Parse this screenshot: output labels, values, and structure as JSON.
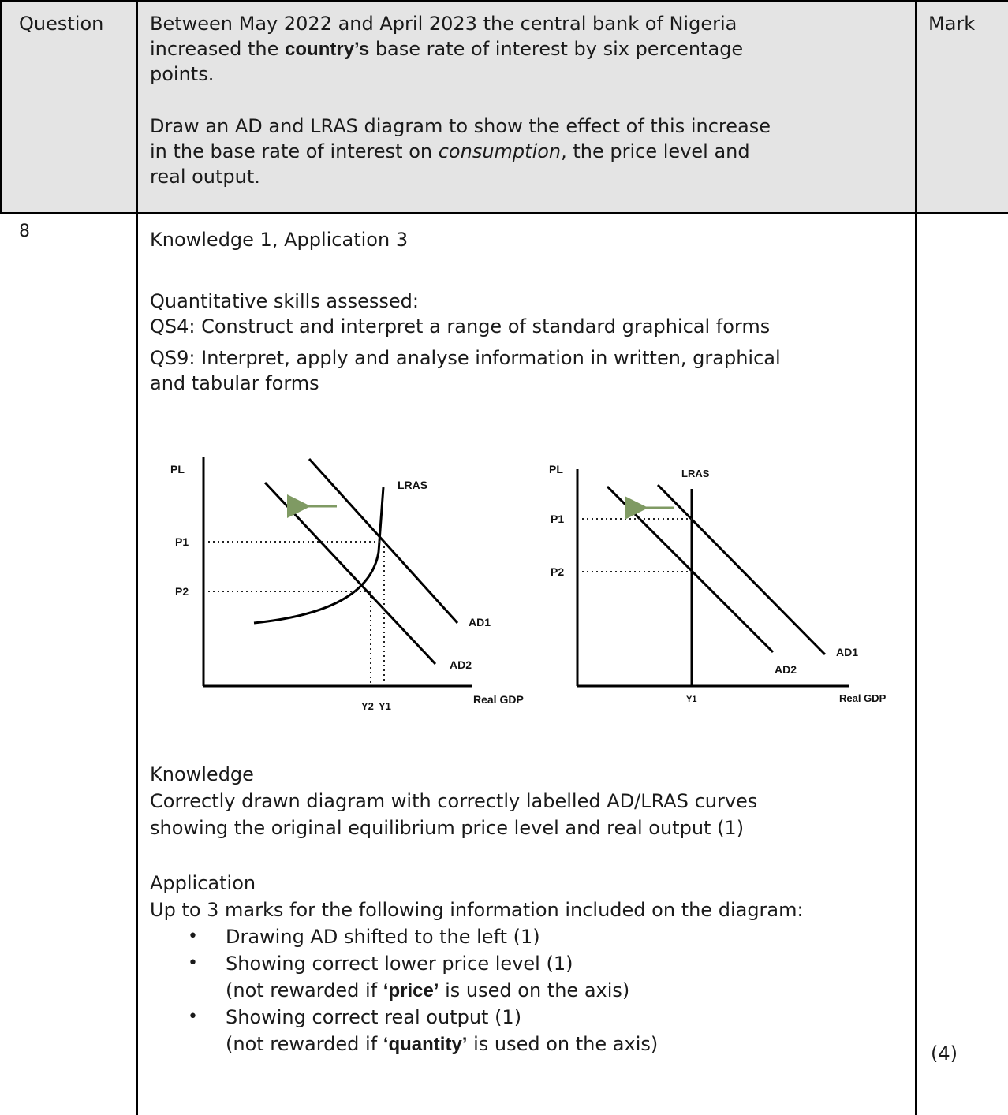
{
  "header": {
    "question_label": "Question",
    "mark_label": "Mark",
    "prompt_lines": [
      {
        "before": "Between May 2022 and April 2023 the central bank of Nigeria",
        "bold": "",
        "after": ""
      },
      {
        "before": "increased the ",
        "bold": "country’s",
        "after": " base rate of interest by six percentage"
      },
      {
        "before": "points.",
        "bold": "",
        "after": ""
      }
    ],
    "task_lines": [
      {
        "before": "Draw an AD and LRAS diagram to show the effect of this increase",
        "italic": "",
        "after": ""
      },
      {
        "before": "in the base rate of interest on ",
        "italic": "consumption",
        "after": ", the price level and"
      },
      {
        "before": "real output.",
        "italic": "",
        "after": ""
      }
    ]
  },
  "row": {
    "question_number": "8",
    "marks_breakdown": "Knowledge 1, Application 3",
    "qs_heading": "Quantitative skills assessed:",
    "qs_items": [
      "QS4: Construct and interpret a range of standard graphical forms",
      "QS9: Interpret, apply and analyse information in written, graphical",
      "and tabular forms"
    ],
    "knowledge_heading": "Knowledge",
    "knowledge_lines": [
      "Correctly drawn diagram with correctly labelled AD/LRAS curves",
      "showing the original equilibrium price level and real output (1)"
    ],
    "application_heading": "Application",
    "application_intro": "Up to 3 marks for the following information included on the diagram:",
    "bullet_1": "Drawing AD shifted to the left (1)",
    "bullet_2": "Showing correct lower price level (1)",
    "bullet_2_note": {
      "before": "(not rewarded if ",
      "bold": "‘price’",
      "after": " is used on the axis)"
    },
    "bullet_3": "Showing correct real output (1)",
    "bullet_3_note": {
      "before": "(not rewarded if ",
      "bold": "‘quantity’",
      "after": " is used on the axis)"
    },
    "bullet_glyph": "•",
    "total_mark": "(4)"
  },
  "diagram_left": {
    "y_axis": "PL",
    "x_axis": "Real GDP",
    "lras": "LRAS",
    "ad1": "AD1",
    "ad2": "AD2",
    "p1": "P1",
    "p2": "P2",
    "y2": "Y2",
    "y1": "Y1"
  },
  "diagram_right": {
    "y_axis": "PL",
    "x_axis": "Real GDP",
    "lras": "LRAS",
    "ad1": "AD1",
    "ad2": "AD2",
    "p1": "P1",
    "p2": "P2",
    "y1": "Y1"
  },
  "colors": {
    "header_bg": "#e4e4e4",
    "arrow": "#7f9a63",
    "text": "#1a1a1a"
  }
}
